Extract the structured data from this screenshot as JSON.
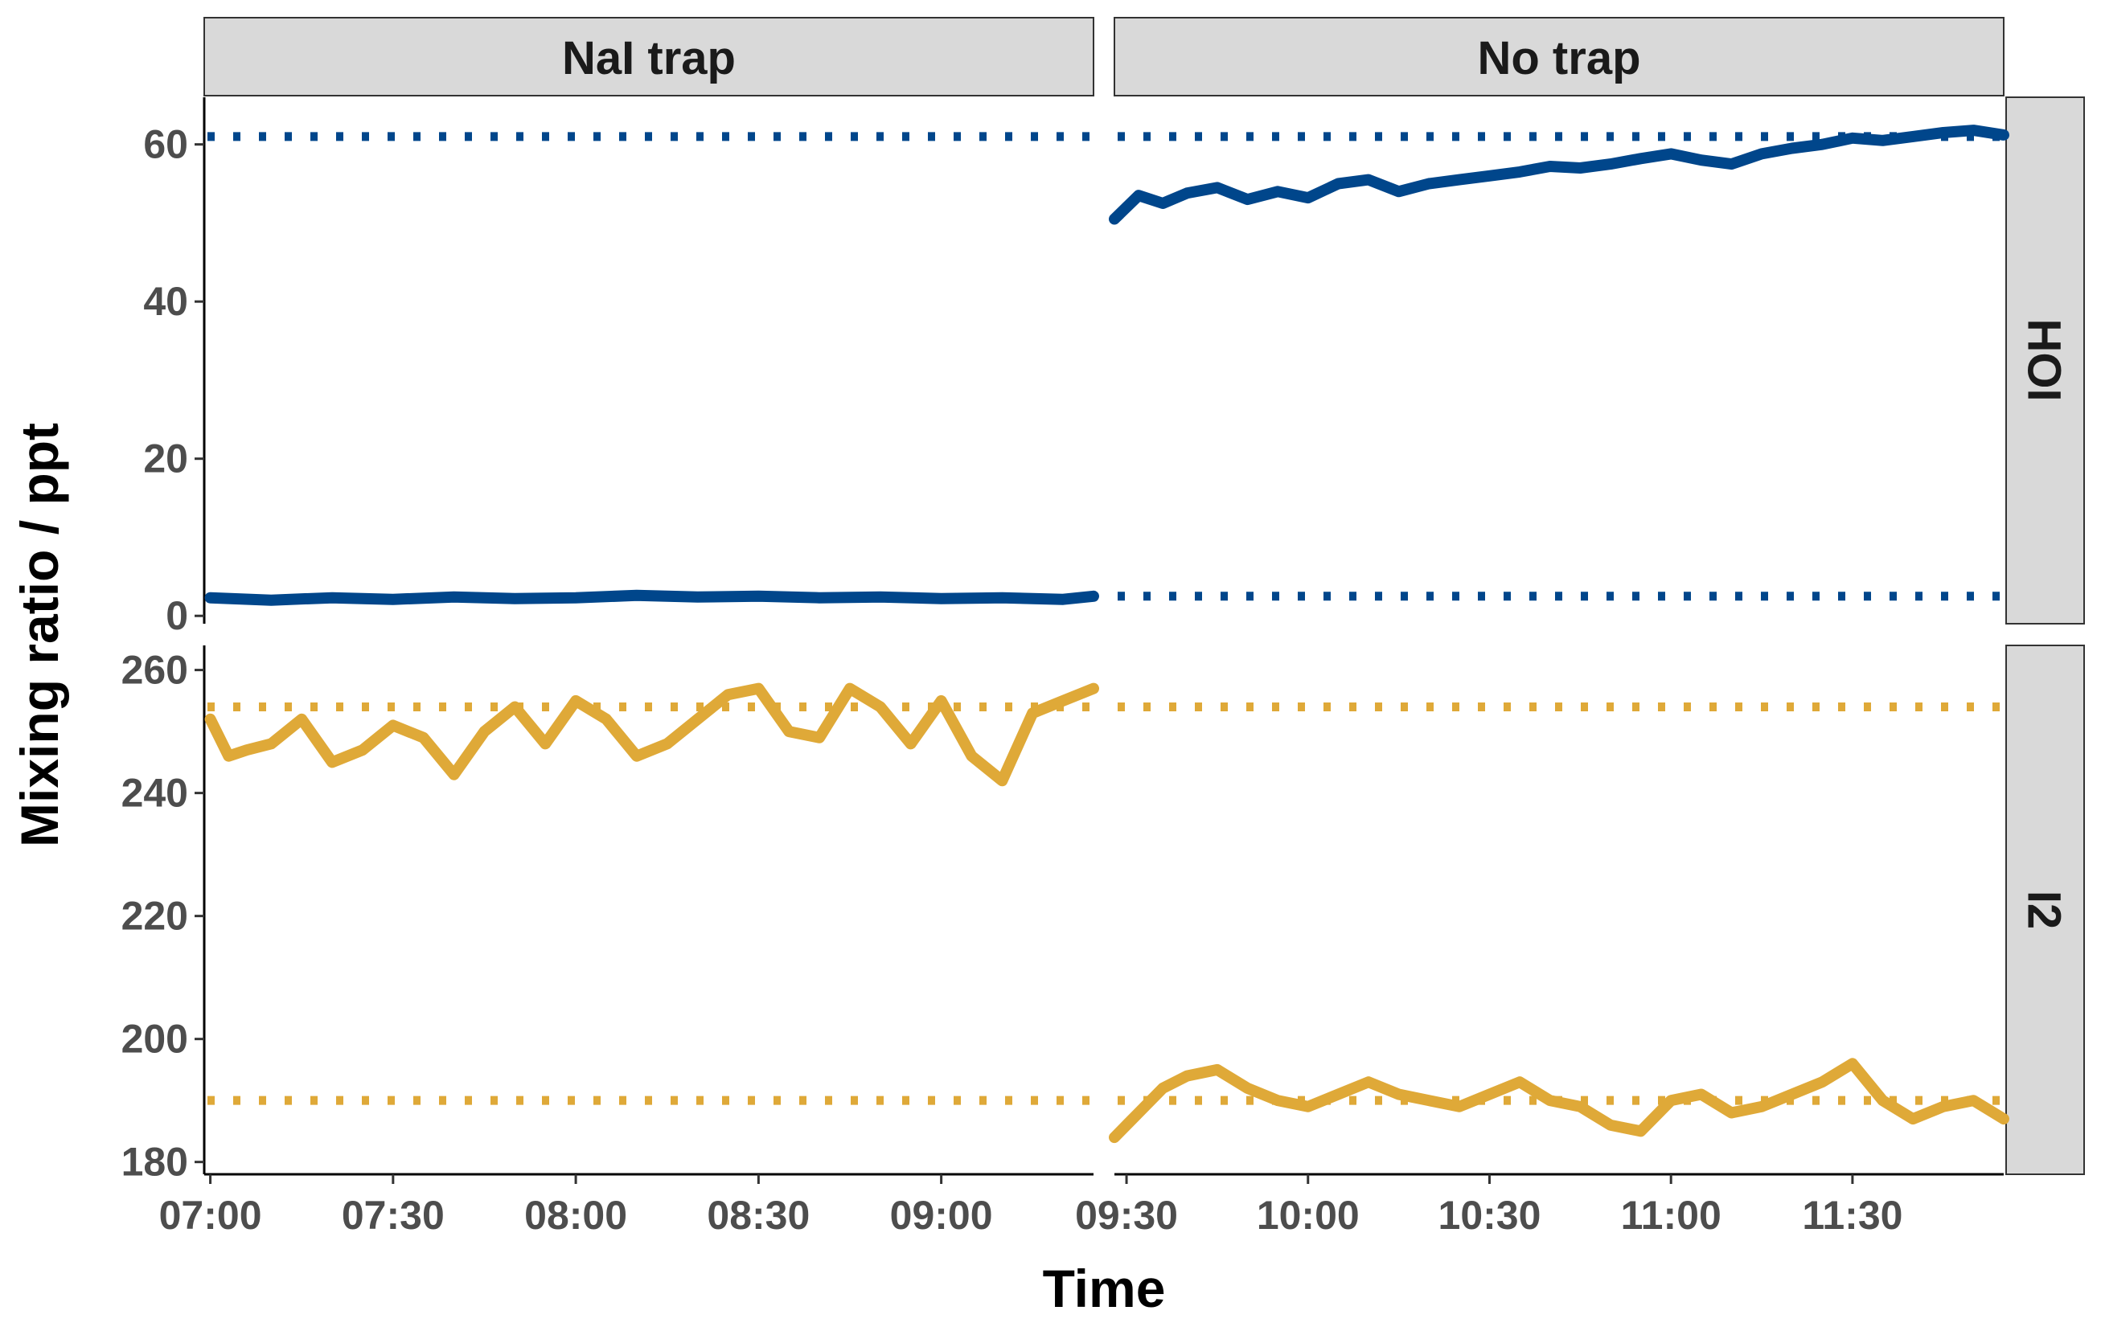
{
  "chart_data": {
    "type": "line",
    "title": "",
    "xlabel": "Time",
    "ylabel": "Mixing ratio / ppt",
    "grid": false,
    "legend": "none",
    "x_ticks": [
      "07:00",
      "07:30",
      "08:00",
      "08:30",
      "09:00",
      "09:30",
      "10:00",
      "10:30",
      "11:00",
      "11:30"
    ],
    "columns": [
      {
        "label": "NaI trap",
        "xlim": [
          "06:59",
          "09:25"
        ]
      },
      {
        "label": "No trap",
        "xlim": [
          "09:28",
          "11:55"
        ]
      }
    ],
    "rows": [
      {
        "label": "HOI",
        "ylim": [
          -1,
          66
        ],
        "ticks": [
          0,
          20,
          40,
          60
        ]
      },
      {
        "label": "I2",
        "ylim": [
          178,
          264
        ],
        "ticks": [
          180,
          200,
          220,
          240,
          260
        ]
      }
    ],
    "colors": {
      "HOI": "#00468b",
      "I2": "#dfa938"
    },
    "series": [
      {
        "panel": "HOI | NaI trap",
        "color": "#00468b",
        "x": [
          "07:00",
          "07:10",
          "07:20",
          "07:30",
          "07:40",
          "07:50",
          "08:00",
          "08:10",
          "08:20",
          "08:30",
          "08:40",
          "08:50",
          "09:00",
          "09:10",
          "09:20",
          "09:25"
        ],
        "values": [
          2.3,
          2.0,
          2.3,
          2.1,
          2.4,
          2.2,
          2.3,
          2.6,
          2.4,
          2.5,
          2.3,
          2.4,
          2.2,
          2.3,
          2.1,
          2.5
        ]
      },
      {
        "panel": "HOI | No trap",
        "color": "#00468b",
        "x": [
          "09:28",
          "09:32",
          "09:36",
          "09:40",
          "09:45",
          "09:50",
          "09:55",
          "10:00",
          "10:05",
          "10:10",
          "10:15",
          "10:20",
          "10:25",
          "10:30",
          "10:35",
          "10:40",
          "10:45",
          "10:50",
          "10:55",
          "11:00",
          "11:05",
          "11:10",
          "11:15",
          "11:20",
          "11:25",
          "11:30",
          "11:35",
          "11:40",
          "11:45",
          "11:50",
          "11:55"
        ],
        "values": [
          50.5,
          53.5,
          52.5,
          53.8,
          54.5,
          53.0,
          54.0,
          53.2,
          55.0,
          55.5,
          54.0,
          55.0,
          55.5,
          56.0,
          56.5,
          57.2,
          57.0,
          57.5,
          58.2,
          58.8,
          58.0,
          57.5,
          58.8,
          59.5,
          60.0,
          60.8,
          60.5,
          61.0,
          61.5,
          61.8,
          61.2
        ]
      },
      {
        "panel": "I2 | NaI trap",
        "color": "#dfa938",
        "x": [
          "07:00",
          "07:03",
          "07:06",
          "07:10",
          "07:15",
          "07:20",
          "07:25",
          "07:30",
          "07:35",
          "07:40",
          "07:45",
          "07:50",
          "07:55",
          "08:00",
          "08:05",
          "08:10",
          "08:15",
          "08:20",
          "08:25",
          "08:30",
          "08:35",
          "08:40",
          "08:45",
          "08:50",
          "08:55",
          "09:00",
          "09:05",
          "09:10",
          "09:15",
          "09:20",
          "09:25"
        ],
        "values": [
          252,
          246,
          247,
          248,
          252,
          245,
          247,
          251,
          249,
          243,
          250,
          254,
          248,
          255,
          252,
          246,
          248,
          252,
          256,
          257,
          250,
          249,
          257,
          254,
          248,
          255,
          246,
          242,
          253,
          255,
          257
        ]
      },
      {
        "panel": "I2 | No trap",
        "color": "#dfa938",
        "x": [
          "09:28",
          "09:32",
          "09:36",
          "09:40",
          "09:45",
          "09:50",
          "09:55",
          "10:00",
          "10:05",
          "10:10",
          "10:15",
          "10:20",
          "10:25",
          "10:30",
          "10:35",
          "10:40",
          "10:45",
          "10:50",
          "10:55",
          "11:00",
          "11:05",
          "11:10",
          "11:15",
          "11:20",
          "11:25",
          "11:30",
          "11:35",
          "11:40",
          "11:45",
          "11:50",
          "11:55"
        ],
        "values": [
          184,
          188,
          192,
          194,
          195,
          192,
          190,
          189,
          191,
          193,
          191,
          190,
          189,
          191,
          193,
          190,
          189,
          186,
          185,
          190,
          191,
          188,
          189,
          191,
          193,
          196,
          190,
          187,
          189,
          190,
          187
        ]
      }
    ],
    "reference_lines": [
      {
        "row": "HOI",
        "y": 61,
        "color": "#00468b",
        "style": "dotted"
      },
      {
        "row": "HOI",
        "y": 2.5,
        "color": "#00468b",
        "style": "dotted",
        "columns": [
          "No trap"
        ]
      },
      {
        "row": "I2",
        "y": 254,
        "color": "#dfa938",
        "style": "dotted"
      },
      {
        "row": "I2",
        "y": 190,
        "color": "#dfa938",
        "style": "dotted"
      }
    ]
  }
}
